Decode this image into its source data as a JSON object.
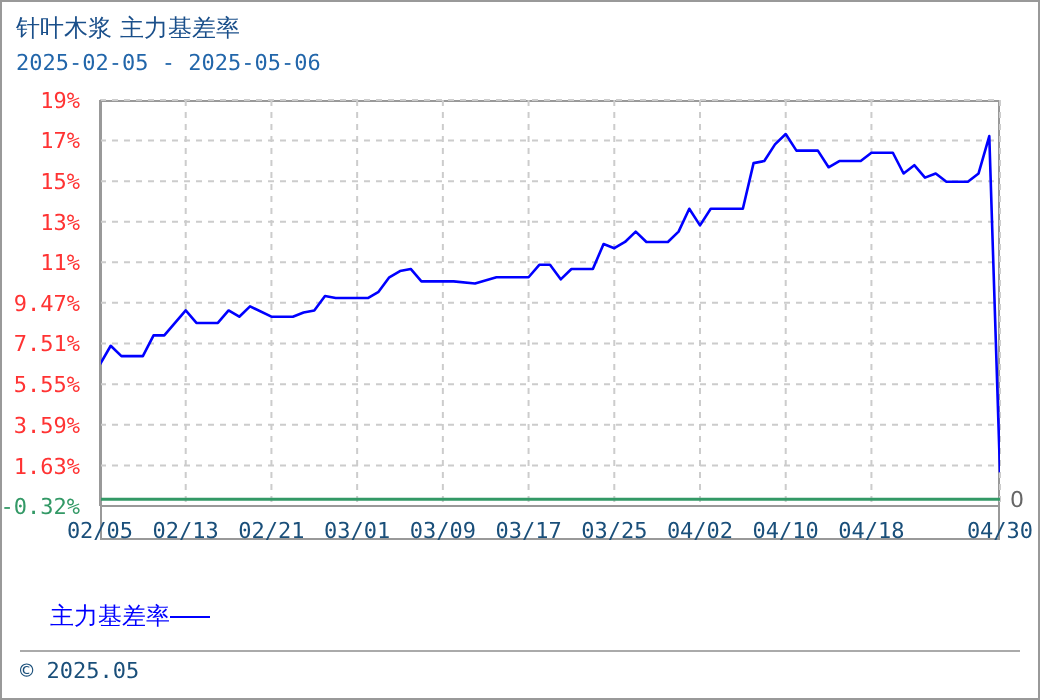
{
  "chart_data": {
    "type": "line",
    "title": "针叶木浆 主力基差率",
    "subtitle": "2025-02-05 - 2025-05-06",
    "x": [
      "2025-02-05",
      "2025-02-06",
      "2025-02-07",
      "2025-02-09",
      "2025-02-10",
      "2025-02-11",
      "2025-02-13",
      "2025-02-14",
      "2025-02-16",
      "2025-02-17",
      "2025-02-18",
      "2025-02-19",
      "2025-02-21",
      "2025-02-23",
      "2025-02-24",
      "2025-02-25",
      "2025-02-26",
      "2025-02-27",
      "2025-03-02",
      "2025-03-03",
      "2025-03-04",
      "2025-03-05",
      "2025-03-06",
      "2025-03-07",
      "2025-03-10",
      "2025-03-12",
      "2025-03-14",
      "2025-03-17",
      "2025-03-18",
      "2025-03-19",
      "2025-03-20",
      "2025-03-21",
      "2025-03-23",
      "2025-03-24",
      "2025-03-25",
      "2025-03-26",
      "2025-03-27",
      "2025-03-28",
      "2025-03-30",
      "2025-03-31",
      "2025-04-01",
      "2025-04-02",
      "2025-04-03",
      "2025-04-06",
      "2025-04-07",
      "2025-04-08",
      "2025-04-09",
      "2025-04-10",
      "2025-04-11",
      "2025-04-13",
      "2025-04-14",
      "2025-04-15",
      "2025-04-17",
      "2025-04-18",
      "2025-04-20",
      "2025-04-21",
      "2025-04-22",
      "2025-04-23",
      "2025-04-24",
      "2025-04-25",
      "2025-04-27",
      "2025-04-28",
      "2025-04-29",
      "2025-04-30"
    ],
    "series": [
      {
        "name": "主力基差率",
        "color": "#0000ff",
        "values": [
          6.5,
          7.4,
          6.9,
          6.9,
          7.9,
          7.9,
          9.1,
          8.5,
          8.5,
          9.1,
          8.8,
          9.3,
          8.8,
          8.8,
          9.0,
          9.1,
          9.8,
          9.7,
          9.7,
          10.0,
          10.7,
          11.0,
          11.1,
          10.5,
          10.5,
          10.4,
          10.7,
          10.7,
          11.3,
          11.3,
          10.6,
          11.1,
          11.1,
          12.3,
          12.1,
          12.4,
          12.9,
          12.4,
          12.4,
          12.9,
          14.0,
          13.2,
          14.0,
          14.0,
          16.2,
          16.3,
          17.1,
          17.6,
          16.8,
          16.8,
          16.0,
          16.3,
          16.3,
          16.7,
          16.7,
          15.7,
          16.1,
          15.5,
          15.7,
          15.3,
          15.3,
          15.7,
          17.5,
          1.3
        ]
      }
    ],
    "xlim": [
      "2025-02-05",
      "2025-04-30"
    ],
    "xticks": [
      {
        "value": "2025-02-05",
        "label": "02/05"
      },
      {
        "value": "2025-02-13",
        "label": "02/13"
      },
      {
        "value": "2025-02-21",
        "label": "02/21"
      },
      {
        "value": "2025-03-01",
        "label": "03/01"
      },
      {
        "value": "2025-03-09",
        "label": "03/09"
      },
      {
        "value": "2025-03-17",
        "label": "03/17"
      },
      {
        "value": "2025-03-25",
        "label": "03/25"
      },
      {
        "value": "2025-04-02",
        "label": "04/02"
      },
      {
        "value": "2025-04-10",
        "label": "04/10"
      },
      {
        "value": "2025-04-18",
        "label": "04/18"
      },
      {
        "value": "2025-04-30",
        "label": "04/30"
      }
    ],
    "ylim": [
      -0.32,
      19.24
    ],
    "yticks": [
      {
        "value": -0.32,
        "label": "-0.32%"
      },
      {
        "value": 1.63,
        "label": "1.63%"
      },
      {
        "value": 3.59,
        "label": "3.59%"
      },
      {
        "value": 5.55,
        "label": "5.55%"
      },
      {
        "value": 7.51,
        "label": "7.51%"
      },
      {
        "value": 9.47,
        "label": "9.47%"
      },
      {
        "value": 11.42,
        "label": "11%"
      },
      {
        "value": 13.38,
        "label": "13%"
      },
      {
        "value": 15.33,
        "label": "15%"
      },
      {
        "value": 17.29,
        "label": "17%"
      },
      {
        "value": 19.24,
        "label": "19%"
      }
    ],
    "grid": true,
    "legend": "bottom left",
    "ref_lines": [
      {
        "axis": "y",
        "value": 0,
        "label": "0",
        "color": "#339966"
      }
    ],
    "annotations": [
      "© 2025.05"
    ]
  }
}
